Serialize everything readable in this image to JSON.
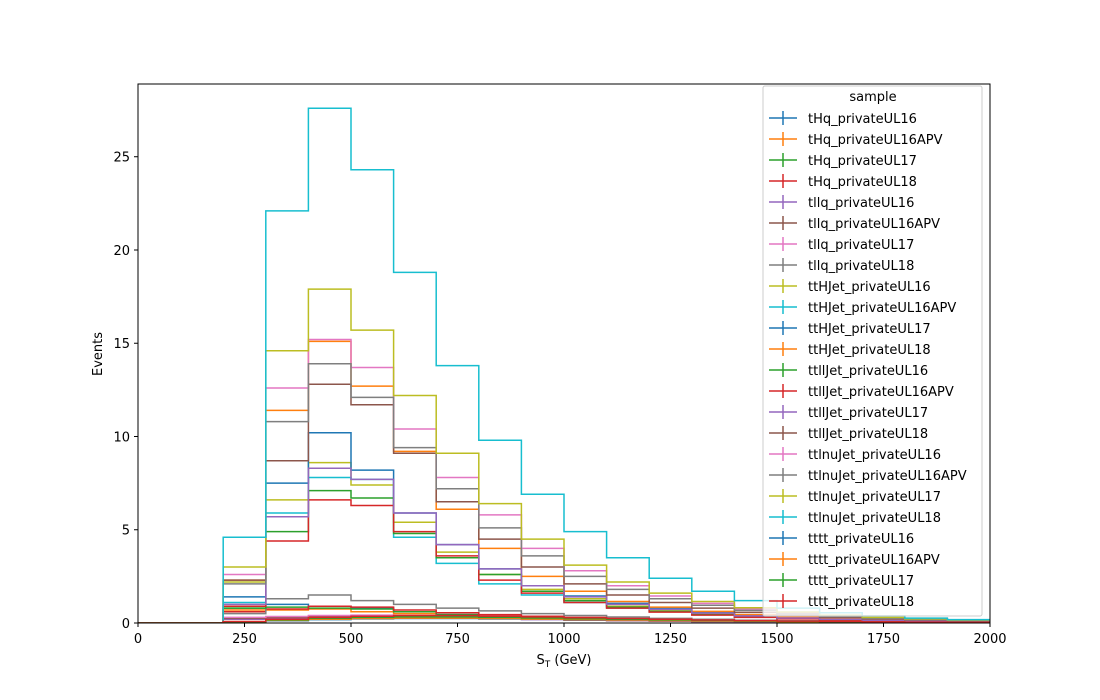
{
  "chart_data": {
    "type": "step-histogram",
    "xlabel": "S_T (GeV)",
    "xlabel_main": "S",
    "xlabel_sub": "T",
    "xlabel_unit": " (GeV)",
    "ylabel": "Events",
    "xlim": [
      0,
      2000
    ],
    "ylim": [
      0,
      28.9
    ],
    "x_ticks": [
      0,
      250,
      500,
      750,
      1000,
      1250,
      1500,
      1750,
      2000
    ],
    "y_ticks": [
      0,
      5,
      10,
      15,
      20,
      25
    ],
    "legend_title": "sample",
    "legend_position": "upper right",
    "grid": false,
    "bin_edges": [
      0,
      100,
      200,
      300,
      400,
      500,
      600,
      700,
      800,
      900,
      1000,
      1100,
      1200,
      1300,
      1400,
      1500,
      1600,
      1700,
      1800,
      1900,
      2000
    ],
    "series": [
      {
        "name": "tHq_privateUL16",
        "color": "#1f77b4",
        "values": [
          0,
          0,
          0.9,
          1.0,
          0.9,
          0.8,
          0.6,
          0.45,
          0.35,
          0.28,
          0.22,
          0.18,
          0.14,
          0.11,
          0.08,
          0.06,
          0.05,
          0.04,
          0.03,
          0.02
        ]
      },
      {
        "name": "tHq_privateUL16APV",
        "color": "#ff7f0e",
        "values": [
          0,
          0,
          0.7,
          0.7,
          0.75,
          0.6,
          0.5,
          0.4,
          0.3,
          0.24,
          0.2,
          0.16,
          0.12,
          0.1,
          0.07,
          0.05,
          0.04,
          0.03,
          0.02,
          0.02
        ]
      },
      {
        "name": "tHq_privateUL17",
        "color": "#2ca02c",
        "values": [
          0,
          0,
          0.8,
          0.85,
          0.8,
          0.75,
          0.6,
          0.45,
          0.35,
          0.28,
          0.22,
          0.17,
          0.13,
          0.1,
          0.08,
          0.06,
          0.05,
          0.04,
          0.03,
          0.02
        ]
      },
      {
        "name": "tHq_privateUL18",
        "color": "#d62728",
        "values": [
          0,
          0,
          0.6,
          0.75,
          0.9,
          0.85,
          0.7,
          0.55,
          0.45,
          0.36,
          0.3,
          0.24,
          0.18,
          0.14,
          0.1,
          0.08,
          0.06,
          0.05,
          0.04,
          0.03
        ]
      },
      {
        "name": "tllq_privateUL16",
        "color": "#9467bd",
        "values": [
          0,
          0,
          0.2,
          0.25,
          0.28,
          0.3,
          0.3,
          0.26,
          0.22,
          0.18,
          0.15,
          0.12,
          0.1,
          0.08,
          0.06,
          0.05,
          0.04,
          0.03,
          0.02,
          0.02
        ]
      },
      {
        "name": "tllq_privateUL16APV",
        "color": "#8c564b",
        "values": [
          0,
          0,
          0.25,
          0.3,
          0.35,
          0.38,
          0.35,
          0.3,
          0.25,
          0.2,
          0.16,
          0.13,
          0.1,
          0.08,
          0.06,
          0.05,
          0.04,
          0.03,
          0.02,
          0.02
        ]
      },
      {
        "name": "tllq_privateUL17",
        "color": "#e377c2",
        "values": [
          0,
          0,
          0.3,
          0.35,
          0.4,
          0.42,
          0.4,
          0.35,
          0.28,
          0.22,
          0.18,
          0.14,
          0.11,
          0.09,
          0.07,
          0.05,
          0.04,
          0.03,
          0.02,
          0.02
        ]
      },
      {
        "name": "tllq_privateUL18",
        "color": "#7f7f7f",
        "values": [
          0,
          0,
          0.5,
          1.3,
          1.5,
          1.2,
          1.0,
          0.8,
          0.65,
          0.5,
          0.4,
          0.32,
          0.25,
          0.2,
          0.15,
          0.12,
          0.1,
          0.08,
          0.06,
          0.05
        ]
      },
      {
        "name": "ttHJet_privateUL16",
        "color": "#bcbd22",
        "values": [
          0,
          0,
          2.2,
          6.6,
          8.6,
          7.4,
          5.4,
          3.8,
          2.6,
          1.8,
          1.3,
          0.9,
          0.7,
          0.5,
          0.35,
          0.25,
          0.18,
          0.13,
          0.1,
          0.07
        ]
      },
      {
        "name": "ttHJet_privateUL16APV",
        "color": "#17becf",
        "values": [
          0,
          0,
          1.1,
          5.9,
          7.8,
          7.7,
          4.6,
          3.2,
          2.1,
          1.5,
          1.1,
          0.8,
          0.6,
          0.45,
          0.32,
          0.23,
          0.17,
          0.12,
          0.09,
          0.06
        ]
      },
      {
        "name": "ttHJet_privateUL17",
        "color": "#1f77b4",
        "values": [
          0,
          0,
          1.4,
          7.5,
          10.2,
          8.2,
          5.9,
          4.2,
          2.9,
          2.0,
          1.45,
          1.05,
          0.8,
          0.58,
          0.42,
          0.3,
          0.22,
          0.16,
          0.12,
          0.09
        ]
      },
      {
        "name": "ttHJet_privateUL18",
        "color": "#ff7f0e",
        "values": [
          0,
          0,
          2.3,
          11.4,
          15.1,
          12.7,
          9.2,
          6.1,
          4.0,
          2.5,
          1.7,
          1.15,
          0.85,
          0.62,
          0.45,
          0.32,
          0.24,
          0.17,
          0.12,
          0.09
        ]
      },
      {
        "name": "ttllJet_privateUL16",
        "color": "#2ca02c",
        "values": [
          0,
          0,
          0.8,
          4.9,
          7.1,
          6.7,
          4.8,
          3.5,
          2.6,
          1.7,
          1.2,
          0.85,
          0.62,
          0.45,
          0.33,
          0.24,
          0.17,
          0.12,
          0.09,
          0.06
        ]
      },
      {
        "name": "ttllJet_privateUL16APV",
        "color": "#d62728",
        "values": [
          0,
          0,
          0.9,
          4.4,
          6.6,
          6.3,
          4.9,
          3.6,
          2.3,
          1.6,
          1.1,
          0.8,
          0.58,
          0.42,
          0.3,
          0.22,
          0.16,
          0.11,
          0.08,
          0.06
        ]
      },
      {
        "name": "ttllJet_privateUL17",
        "color": "#9467bd",
        "values": [
          0,
          0,
          1.0,
          5.7,
          8.3,
          7.7,
          5.9,
          4.2,
          2.9,
          2.0,
          1.4,
          1.0,
          0.73,
          0.53,
          0.38,
          0.27,
          0.2,
          0.14,
          0.1,
          0.07
        ]
      },
      {
        "name": "ttllJet_privateUL18",
        "color": "#8c564b",
        "values": [
          0,
          0,
          2.3,
          8.7,
          12.8,
          11.7,
          9.1,
          6.5,
          4.5,
          3.0,
          2.1,
          1.5,
          1.1,
          0.8,
          0.57,
          0.41,
          0.3,
          0.22,
          0.16,
          0.11
        ]
      },
      {
        "name": "ttlnuJet_privateUL16",
        "color": "#e377c2",
        "values": [
          0,
          0,
          2.6,
          12.6,
          15.2,
          13.7,
          10.4,
          7.8,
          5.8,
          4.0,
          2.8,
          2.0,
          1.45,
          1.05,
          0.75,
          0.54,
          0.39,
          0.28,
          0.2,
          0.14
        ]
      },
      {
        "name": "ttlnuJet_privateUL16APV",
        "color": "#7f7f7f",
        "values": [
          0,
          0,
          2.1,
          10.8,
          13.9,
          12.1,
          9.4,
          7.2,
          5.1,
          3.6,
          2.5,
          1.8,
          1.3,
          0.95,
          0.68,
          0.49,
          0.35,
          0.25,
          0.18,
          0.13
        ]
      },
      {
        "name": "ttlnuJet_privateUL17",
        "color": "#bcbd22",
        "values": [
          0,
          0,
          3.0,
          14.6,
          17.9,
          15.7,
          12.2,
          9.1,
          6.4,
          4.5,
          3.1,
          2.2,
          1.6,
          1.15,
          0.82,
          0.59,
          0.42,
          0.3,
          0.22,
          0.16
        ]
      },
      {
        "name": "ttlnuJet_privateUL18",
        "color": "#17becf",
        "values": [
          0,
          0,
          4.6,
          22.1,
          27.6,
          24.3,
          18.8,
          13.8,
          9.8,
          6.9,
          4.9,
          3.5,
          2.4,
          1.7,
          1.2,
          0.8,
          0.55,
          0.38,
          0.26,
          0.18
        ]
      },
      {
        "name": "tttt_privateUL16",
        "color": "#1f77b4",
        "values": [
          0,
          0,
          0.05,
          0.12,
          0.18,
          0.22,
          0.24,
          0.24,
          0.22,
          0.2,
          0.17,
          0.15,
          0.12,
          0.1,
          0.08,
          0.06,
          0.05,
          0.04,
          0.03,
          0.02
        ]
      },
      {
        "name": "tttt_privateUL16APV",
        "color": "#ff7f0e",
        "values": [
          0,
          0,
          0.06,
          0.14,
          0.2,
          0.24,
          0.26,
          0.26,
          0.24,
          0.21,
          0.18,
          0.16,
          0.13,
          0.11,
          0.09,
          0.07,
          0.05,
          0.04,
          0.03,
          0.02
        ]
      },
      {
        "name": "tttt_privateUL17",
        "color": "#2ca02c",
        "values": [
          0,
          0,
          0.07,
          0.17,
          0.25,
          0.3,
          0.33,
          0.33,
          0.3,
          0.27,
          0.23,
          0.2,
          0.17,
          0.14,
          0.11,
          0.09,
          0.07,
          0.05,
          0.04,
          0.03
        ]
      },
      {
        "name": "tttt_privateUL18",
        "color": "#d62728",
        "values": [
          0,
          0,
          0.08,
          0.2,
          0.3,
          0.36,
          0.4,
          0.4,
          0.37,
          0.33,
          0.28,
          0.24,
          0.2,
          0.16,
          0.13,
          0.1,
          0.08,
          0.06,
          0.05,
          0.04
        ]
      }
    ]
  }
}
